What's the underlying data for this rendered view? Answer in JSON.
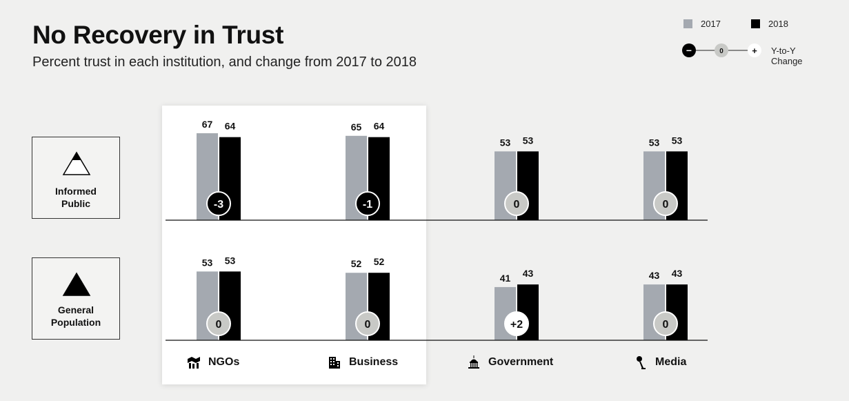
{
  "title": "No Recovery in Trust",
  "subtitle": "Percent trust in each institution, and change from 2017 to 2018",
  "legend": {
    "y2017": "2017",
    "y2018": "2018",
    "change_minus": "−",
    "change_zero": "0",
    "change_plus": "+",
    "change_label": "Y-to-Y Change"
  },
  "colors": {
    "bar2017": "#a4a9b0",
    "bar2018": "#000000",
    "zeroBubble": "#c8c9c6",
    "negBubble": "#000000",
    "posBubble": "#ffffff"
  },
  "rows": [
    {
      "label_line1": "Informed",
      "label_line2": "Public",
      "icon": "filled-top-triangle-icon"
    },
    {
      "label_line1": "General",
      "label_line2": "Population",
      "icon": "filled-triangle-icon"
    }
  ],
  "chart_data": {
    "type": "bar",
    "categories": [
      "NGOs",
      "Business",
      "Government",
      "Media"
    ],
    "category_icons": [
      "ngo-hands-icon",
      "business-building-icon",
      "government-capitol-icon",
      "media-microphone-icon"
    ],
    "panels": [
      {
        "name": "Informed Public",
        "series": [
          {
            "name": "2017",
            "values": [
              67,
              65,
              53,
              53
            ]
          },
          {
            "name": "2018",
            "values": [
              64,
              64,
              53,
              53
            ]
          }
        ],
        "change": [
          "-3",
          "-1",
          "0",
          "0"
        ]
      },
      {
        "name": "General Population",
        "series": [
          {
            "name": "2017",
            "values": [
              53,
              52,
              41,
              43
            ]
          },
          {
            "name": "2018",
            "values": [
              53,
              52,
              43,
              43
            ]
          }
        ],
        "change": [
          "0",
          "0",
          "+2",
          "0"
        ]
      }
    ],
    "highlighted_categories": [
      "NGOs",
      "Business"
    ]
  }
}
